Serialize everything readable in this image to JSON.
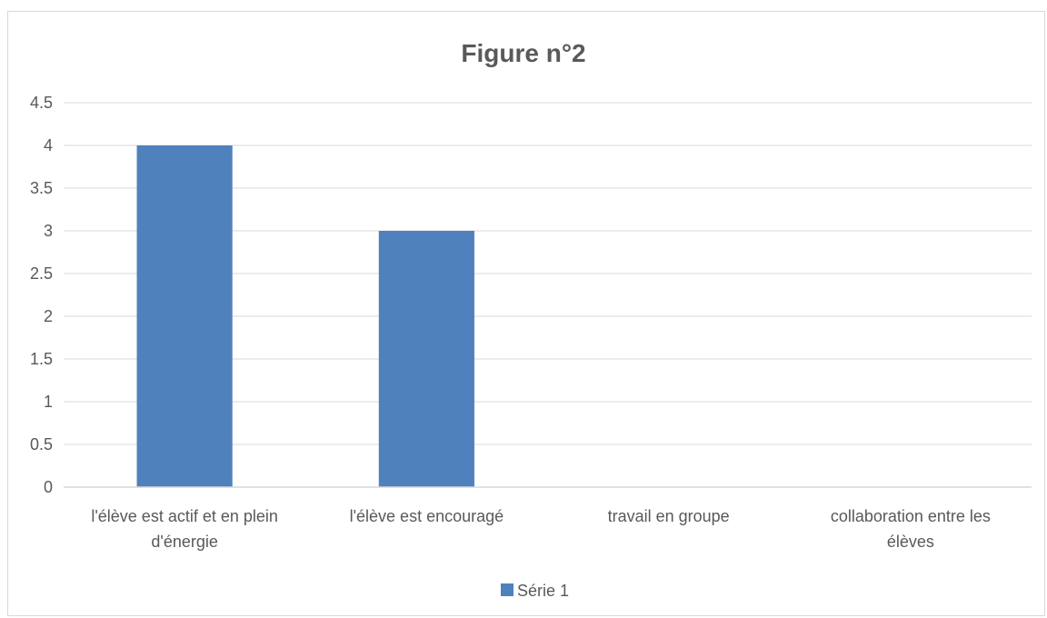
{
  "chart_data": {
    "type": "bar",
    "title": "Figure n°2",
    "categories": [
      [
        "l'élève est actif et en plein",
        "d'énergie"
      ],
      [
        "l'élève est  encouragé"
      ],
      [
        "travail en groupe"
      ],
      [
        "collaboration entre les",
        "élèves"
      ]
    ],
    "series": [
      {
        "name": "Série 1",
        "values": [
          4,
          3,
          0,
          0
        ],
        "color": "#4f81bd"
      }
    ],
    "ylim": [
      0,
      4.5
    ],
    "yticks": [
      "0",
      "0.5",
      "1",
      "1.5",
      "2",
      "2.5",
      "3",
      "3.5",
      "4",
      "4.5"
    ],
    "grid": true,
    "legend": "bottom"
  }
}
